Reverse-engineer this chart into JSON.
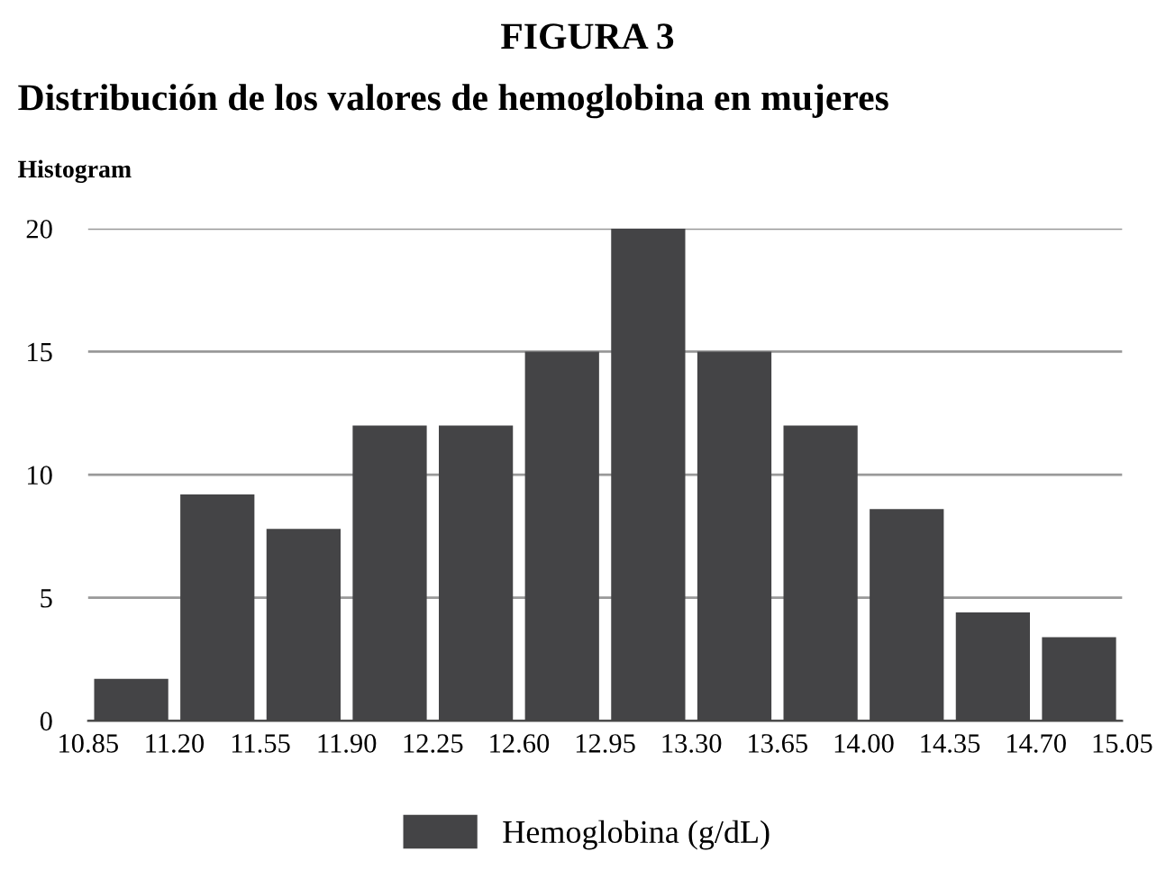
{
  "chart_data": {
    "type": "histogram",
    "title": "FIGURA 3",
    "subtitle": "Distribución de los valores de hemoglobina en mujeres",
    "annotations": [
      "Histogram"
    ],
    "bins": [
      10.85,
      11.2,
      11.55,
      11.9,
      12.25,
      12.6,
      12.95,
      13.3,
      13.65,
      14.0,
      14.35,
      14.7,
      15.05
    ],
    "series": [
      {
        "name": "Hemoglobina (g/dL)",
        "color": "#444446",
        "values": [
          1.7,
          9.2,
          7.8,
          12,
          12,
          15,
          20,
          15,
          12,
          8.6,
          4.4,
          3.4
        ]
      }
    ],
    "xlim": [
      10.85,
      15.05
    ],
    "xticks": [
      {
        "value": 10.85,
        "label": "10.85"
      },
      {
        "value": 11.2,
        "label": "11.20"
      },
      {
        "value": 11.55,
        "label": "11.55"
      },
      {
        "value": 11.9,
        "label": "11.90"
      },
      {
        "value": 12.25,
        "label": "12.25"
      },
      {
        "value": 12.6,
        "label": "12.60"
      },
      {
        "value": 12.95,
        "label": "12.95"
      },
      {
        "value": 13.3,
        "label": "13.30"
      },
      {
        "value": 13.65,
        "label": "13.65"
      },
      {
        "value": 14.0,
        "label": "14.00"
      },
      {
        "value": 14.35,
        "label": "14.35"
      },
      {
        "value": 14.7,
        "label": "14.70"
      },
      {
        "value": 15.05,
        "label": "15.05"
      }
    ],
    "ylim": [
      0,
      20
    ],
    "yticks": [
      0,
      5,
      10,
      15,
      20
    ],
    "grid": "y",
    "legend": "bottom"
  }
}
